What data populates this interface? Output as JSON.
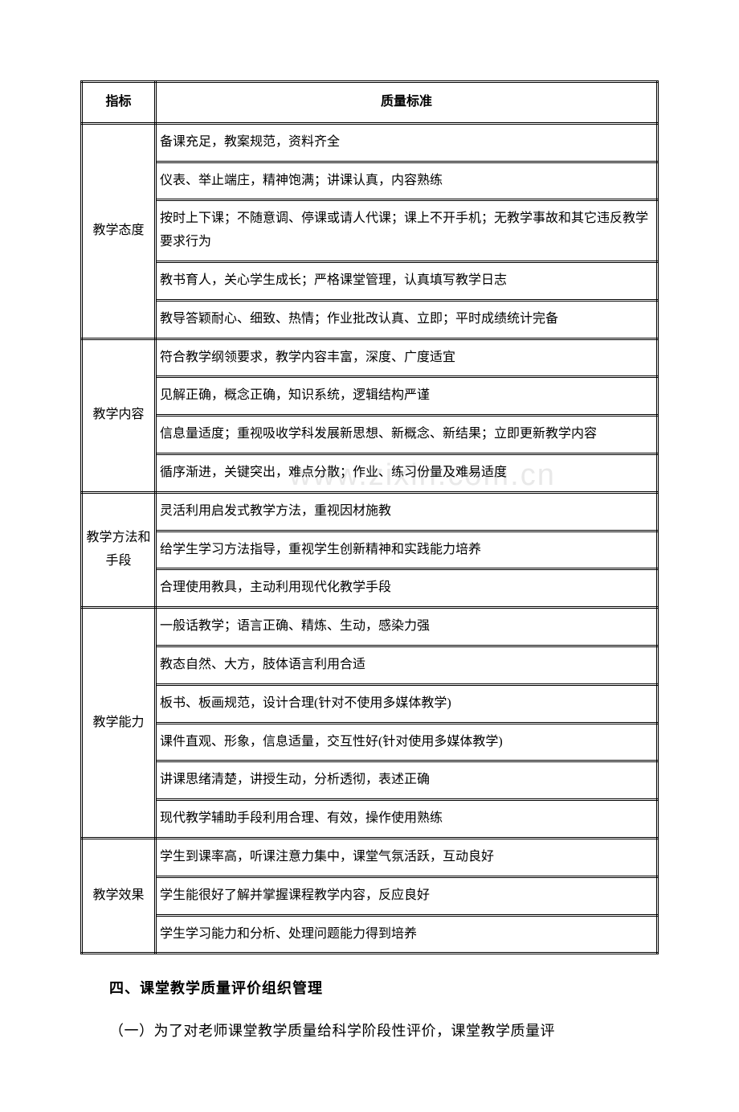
{
  "watermark": "www.zixin.com.cn",
  "table": {
    "header": {
      "col1": "指标",
      "col2": "质量标准"
    },
    "groups": [
      {
        "label": "教学态度",
        "rows": [
          "备课充足，教案规范，资料齐全",
          "仪表、举止端庄，精神饱满；讲课认真，内容熟练",
          "按时上下课；不随意调、停课或请人代课；课上不开手机；无教学事故和其它违反教学要求行为",
          "教书育人，关心学生成长；严格课堂管理，认真填写教学日志",
          "教导答颖耐心、细致、热情；作业批改认真、立即；平时成绩统计完备"
        ]
      },
      {
        "label": "教学内容",
        "rows": [
          "符合教学纲领要求，教学内容丰富，深度、广度适宜",
          "见解正确，概念正确，知识系统，逻辑结构严谨",
          "信息量适度；重视吸收学科发展新思想、新概念、新结果；立即更新教学内容",
          "循序渐进，关键突出，难点分散；作业、练习份量及难易适度"
        ]
      },
      {
        "label": "教学方法和手段",
        "rows": [
          "灵活利用启发式教学方法，重视因材施教",
          "给学生学习方法指导，重视学生创新精神和实践能力培养",
          "合理使用教具，主动利用现代化教学手段"
        ]
      },
      {
        "label": "教学能力",
        "rows": [
          "一般话教学；语言正确、精炼、生动，感染力强",
          "教态自然、大方，肢体语言利用合适",
          "板书、板画规范，设计合理(针对不使用多媒体教学)",
          "课件直观、形象，信息适量，交互性好(针对使用多媒体教学)",
          "讲课思绪清楚，讲授生动，分析透彻，表述正确",
          "现代教学辅助手段利用合理、有效，操作使用熟练"
        ]
      },
      {
        "label": "教学效果",
        "rows": [
          "学生到课率高，听课注意力集中，课堂气氛活跃，互动良好",
          "学生能很好了解并掌握课程教学内容，反应良好",
          "学生学习能力和分析、处理问题能力得到培养"
        ]
      }
    ]
  },
  "heading4": "四、课堂教学质量评价组织管理",
  "para1": "（一）为了对老师课堂教学质量给科学阶段性评价，课堂教学质量评"
}
